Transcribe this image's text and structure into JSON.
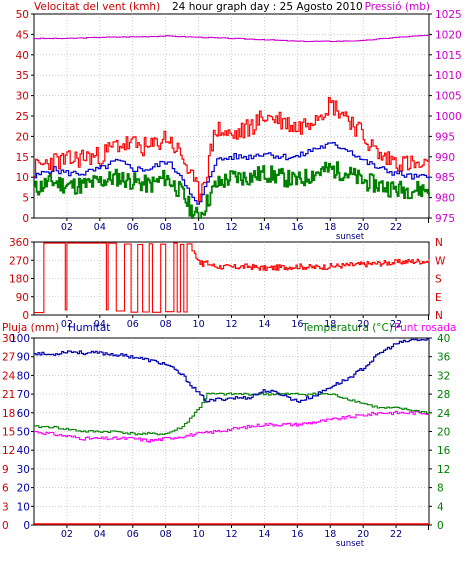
{
  "header": {
    "wind_label": "Velocitat del vent (kmh)",
    "title": "24 hour graph day : 25 Agosto 2010",
    "pressure_label": "Pressió (mb)",
    "rain_label": "Pluja (mm)",
    "humidity_label": "Humitat",
    "temperature_label": "Temperatura (°C)",
    "dewpoint_label": "Punt rosada"
  },
  "colors": {
    "wind_gust": "#ff0000",
    "wind_avg": "#0000cc",
    "wind_low": "#008000",
    "pressure": "#cc00cc",
    "direction": "#ff0000",
    "humidity": "#0000aa",
    "temperature": "#008000",
    "dewpoint": "#ff00ff",
    "rain": "#ff0000",
    "frame": "#000000"
  },
  "chart_data": [
    {
      "type": "line",
      "title": "24 hour graph day : 25 Agosto 2010",
      "x_ticks": [
        "02",
        "04",
        "06",
        "08",
        "10",
        "12",
        "14",
        "16",
        "18",
        "20",
        "22"
      ],
      "x_annotation": "sunset",
      "y_left": {
        "label": "Velocitat del vent (kmh)",
        "ticks": [
          0,
          5,
          10,
          15,
          20,
          25,
          30,
          35,
          40,
          45,
          50
        ],
        "range": [
          0,
          50
        ]
      },
      "y_right": {
        "label": "Pressió (mb)",
        "ticks": [
          975,
          980,
          985,
          990,
          995,
          1000,
          1005,
          1010,
          1015,
          1020,
          1025
        ],
        "range": [
          975,
          1025
        ]
      },
      "x_range": [
        0,
        24
      ],
      "grid": true,
      "series": [
        {
          "name": "wind_gust",
          "axis": "left",
          "x": [
            0,
            1,
            2,
            3,
            4,
            5,
            6,
            7,
            8,
            9,
            9.5,
            10,
            10.5,
            11,
            12,
            13,
            14,
            15,
            16,
            17,
            18,
            19,
            20,
            21,
            22,
            23,
            24
          ],
          "y": [
            12,
            14,
            14,
            15,
            15,
            18,
            18,
            17,
            20,
            15,
            10,
            6,
            12,
            22,
            20,
            22,
            25,
            24,
            22,
            25,
            28,
            25,
            20,
            15,
            14,
            13,
            12
          ]
        },
        {
          "name": "wind_avg",
          "axis": "left",
          "x": [
            0,
            1,
            2,
            3,
            4,
            5,
            6,
            7,
            8,
            9,
            9.5,
            10,
            10.5,
            11,
            12,
            13,
            14,
            15,
            16,
            17,
            18,
            19,
            20,
            21,
            22,
            23,
            24
          ],
          "y": [
            10,
            12,
            11,
            11,
            12,
            14,
            12,
            12,
            14,
            10,
            5,
            3,
            9,
            14,
            15,
            15,
            16,
            15,
            15,
            17,
            18,
            17,
            14,
            12,
            11,
            10,
            10
          ]
        },
        {
          "name": "wind_low",
          "axis": "left",
          "x": [
            0,
            1,
            2,
            3,
            4,
            5,
            6,
            7,
            8,
            9,
            9.5,
            10,
            10.5,
            11,
            12,
            13,
            14,
            15,
            16,
            17,
            18,
            19,
            20,
            21,
            22,
            23,
            24
          ],
          "y": [
            7,
            9,
            8,
            8,
            9,
            10,
            9,
            8,
            10,
            6,
            2,
            0,
            4,
            8,
            10,
            10,
            11,
            10,
            9,
            11,
            12,
            11,
            9,
            8,
            7,
            7,
            7
          ]
        },
        {
          "name": "pressure",
          "axis": "right",
          "x": [
            0,
            2,
            4,
            6,
            8,
            10,
            12,
            14,
            16,
            18,
            20,
            22,
            24
          ],
          "y": [
            1019,
            1019,
            1019.3,
            1019.4,
            1019.6,
            1019.3,
            1019,
            1018.7,
            1018.3,
            1018.3,
            1018.5,
            1019.3,
            1019.8
          ]
        }
      ]
    },
    {
      "type": "line",
      "x_ticks": [
        "02",
        "04",
        "06",
        "08",
        "10",
        "12",
        "14",
        "16",
        "18",
        "20",
        "22"
      ],
      "y_left": {
        "ticks": [
          0,
          90,
          180,
          270,
          360
        ],
        "range": [
          0,
          360
        ]
      },
      "y_right": {
        "ticks": [
          "N",
          "W",
          "S",
          "E",
          "N"
        ]
      },
      "x_range": [
        0,
        24
      ],
      "grid": true,
      "series": [
        {
          "name": "wind_direction",
          "x": [
            0,
            0.5,
            1,
            1.5,
            2,
            3,
            4,
            5,
            6,
            7,
            8,
            9,
            9.5,
            10,
            11,
            12,
            13,
            14,
            15,
            16,
            17,
            18,
            19,
            20,
            21,
            22,
            23,
            24
          ],
          "y": [
            20,
            20,
            340,
            340,
            340,
            345,
            340,
            300,
            200,
            250,
            200,
            340,
            330,
            270,
            240,
            235,
            240,
            230,
            235,
            240,
            235,
            240,
            245,
            250,
            255,
            260,
            265,
            265
          ]
        }
      ]
    },
    {
      "type": "line",
      "x_ticks": [
        "02",
        "04",
        "06",
        "08",
        "10",
        "12",
        "14",
        "16",
        "18",
        "20",
        "22"
      ],
      "x_annotation": "sunset",
      "y_left_rain": {
        "label": "Pluja (mm)",
        "ticks": [
          0,
          3,
          6,
          9,
          12,
          15,
          18,
          21,
          24,
          27,
          30
        ],
        "range": [
          0,
          30
        ]
      },
      "y_left_humidity": {
        "label": "Humitat",
        "ticks": [
          0,
          10,
          20,
          30,
          40,
          50,
          60,
          70,
          80,
          90,
          100
        ],
        "range": [
          0,
          100
        ]
      },
      "y_right": {
        "label": "Temperatura (°C)",
        "ticks": [
          0,
          4,
          8,
          12,
          16,
          20,
          24,
          28,
          32,
          36,
          40
        ],
        "range": [
          0,
          40
        ]
      },
      "x_range": [
        0,
        24
      ],
      "grid": true,
      "series": [
        {
          "name": "humidity",
          "axis": "humidity",
          "x": [
            0,
            1,
            2,
            3,
            4,
            5,
            6,
            7,
            8,
            9,
            10,
            10.5,
            11,
            12,
            13,
            14,
            15,
            16,
            17,
            18,
            19,
            20,
            21,
            22,
            23,
            24
          ],
          "y": [
            92,
            91,
            93,
            92,
            92,
            91,
            90,
            88,
            86,
            80,
            70,
            66,
            67,
            68,
            68,
            72,
            70,
            66,
            69,
            74,
            78,
            84,
            92,
            97,
            99,
            99
          ]
        },
        {
          "name": "temperature",
          "axis": "right",
          "x": [
            0,
            1,
            2,
            3,
            4,
            5,
            6,
            7,
            8,
            9,
            10,
            10.5,
            11,
            12,
            13,
            14,
            15,
            16,
            17,
            18,
            19,
            20,
            21,
            22,
            23,
            24
          ],
          "y": [
            21,
            21,
            20.5,
            20,
            20,
            20,
            19.5,
            19.5,
            19.5,
            21,
            25,
            28,
            28,
            28,
            28,
            28,
            28,
            28,
            28,
            28,
            27,
            26,
            25,
            25,
            24.5,
            24
          ]
        },
        {
          "name": "dewpoint",
          "axis": "right",
          "x": [
            0,
            1,
            2,
            3,
            4,
            5,
            6,
            7,
            8,
            9,
            10,
            11,
            12,
            13,
            14,
            15,
            16,
            17,
            18,
            19,
            20,
            21,
            22,
            23,
            24
          ],
          "y": [
            20,
            19.5,
            19,
            18.5,
            18.5,
            18.5,
            18.5,
            18,
            18.5,
            19,
            19.5,
            20,
            20.5,
            21,
            21.5,
            21.5,
            21.5,
            22,
            22.5,
            23,
            23.5,
            24,
            24,
            24,
            24
          ]
        },
        {
          "name": "rain",
          "axis": "rain",
          "x": [
            0,
            24
          ],
          "y": [
            0,
            0
          ]
        }
      ]
    }
  ]
}
